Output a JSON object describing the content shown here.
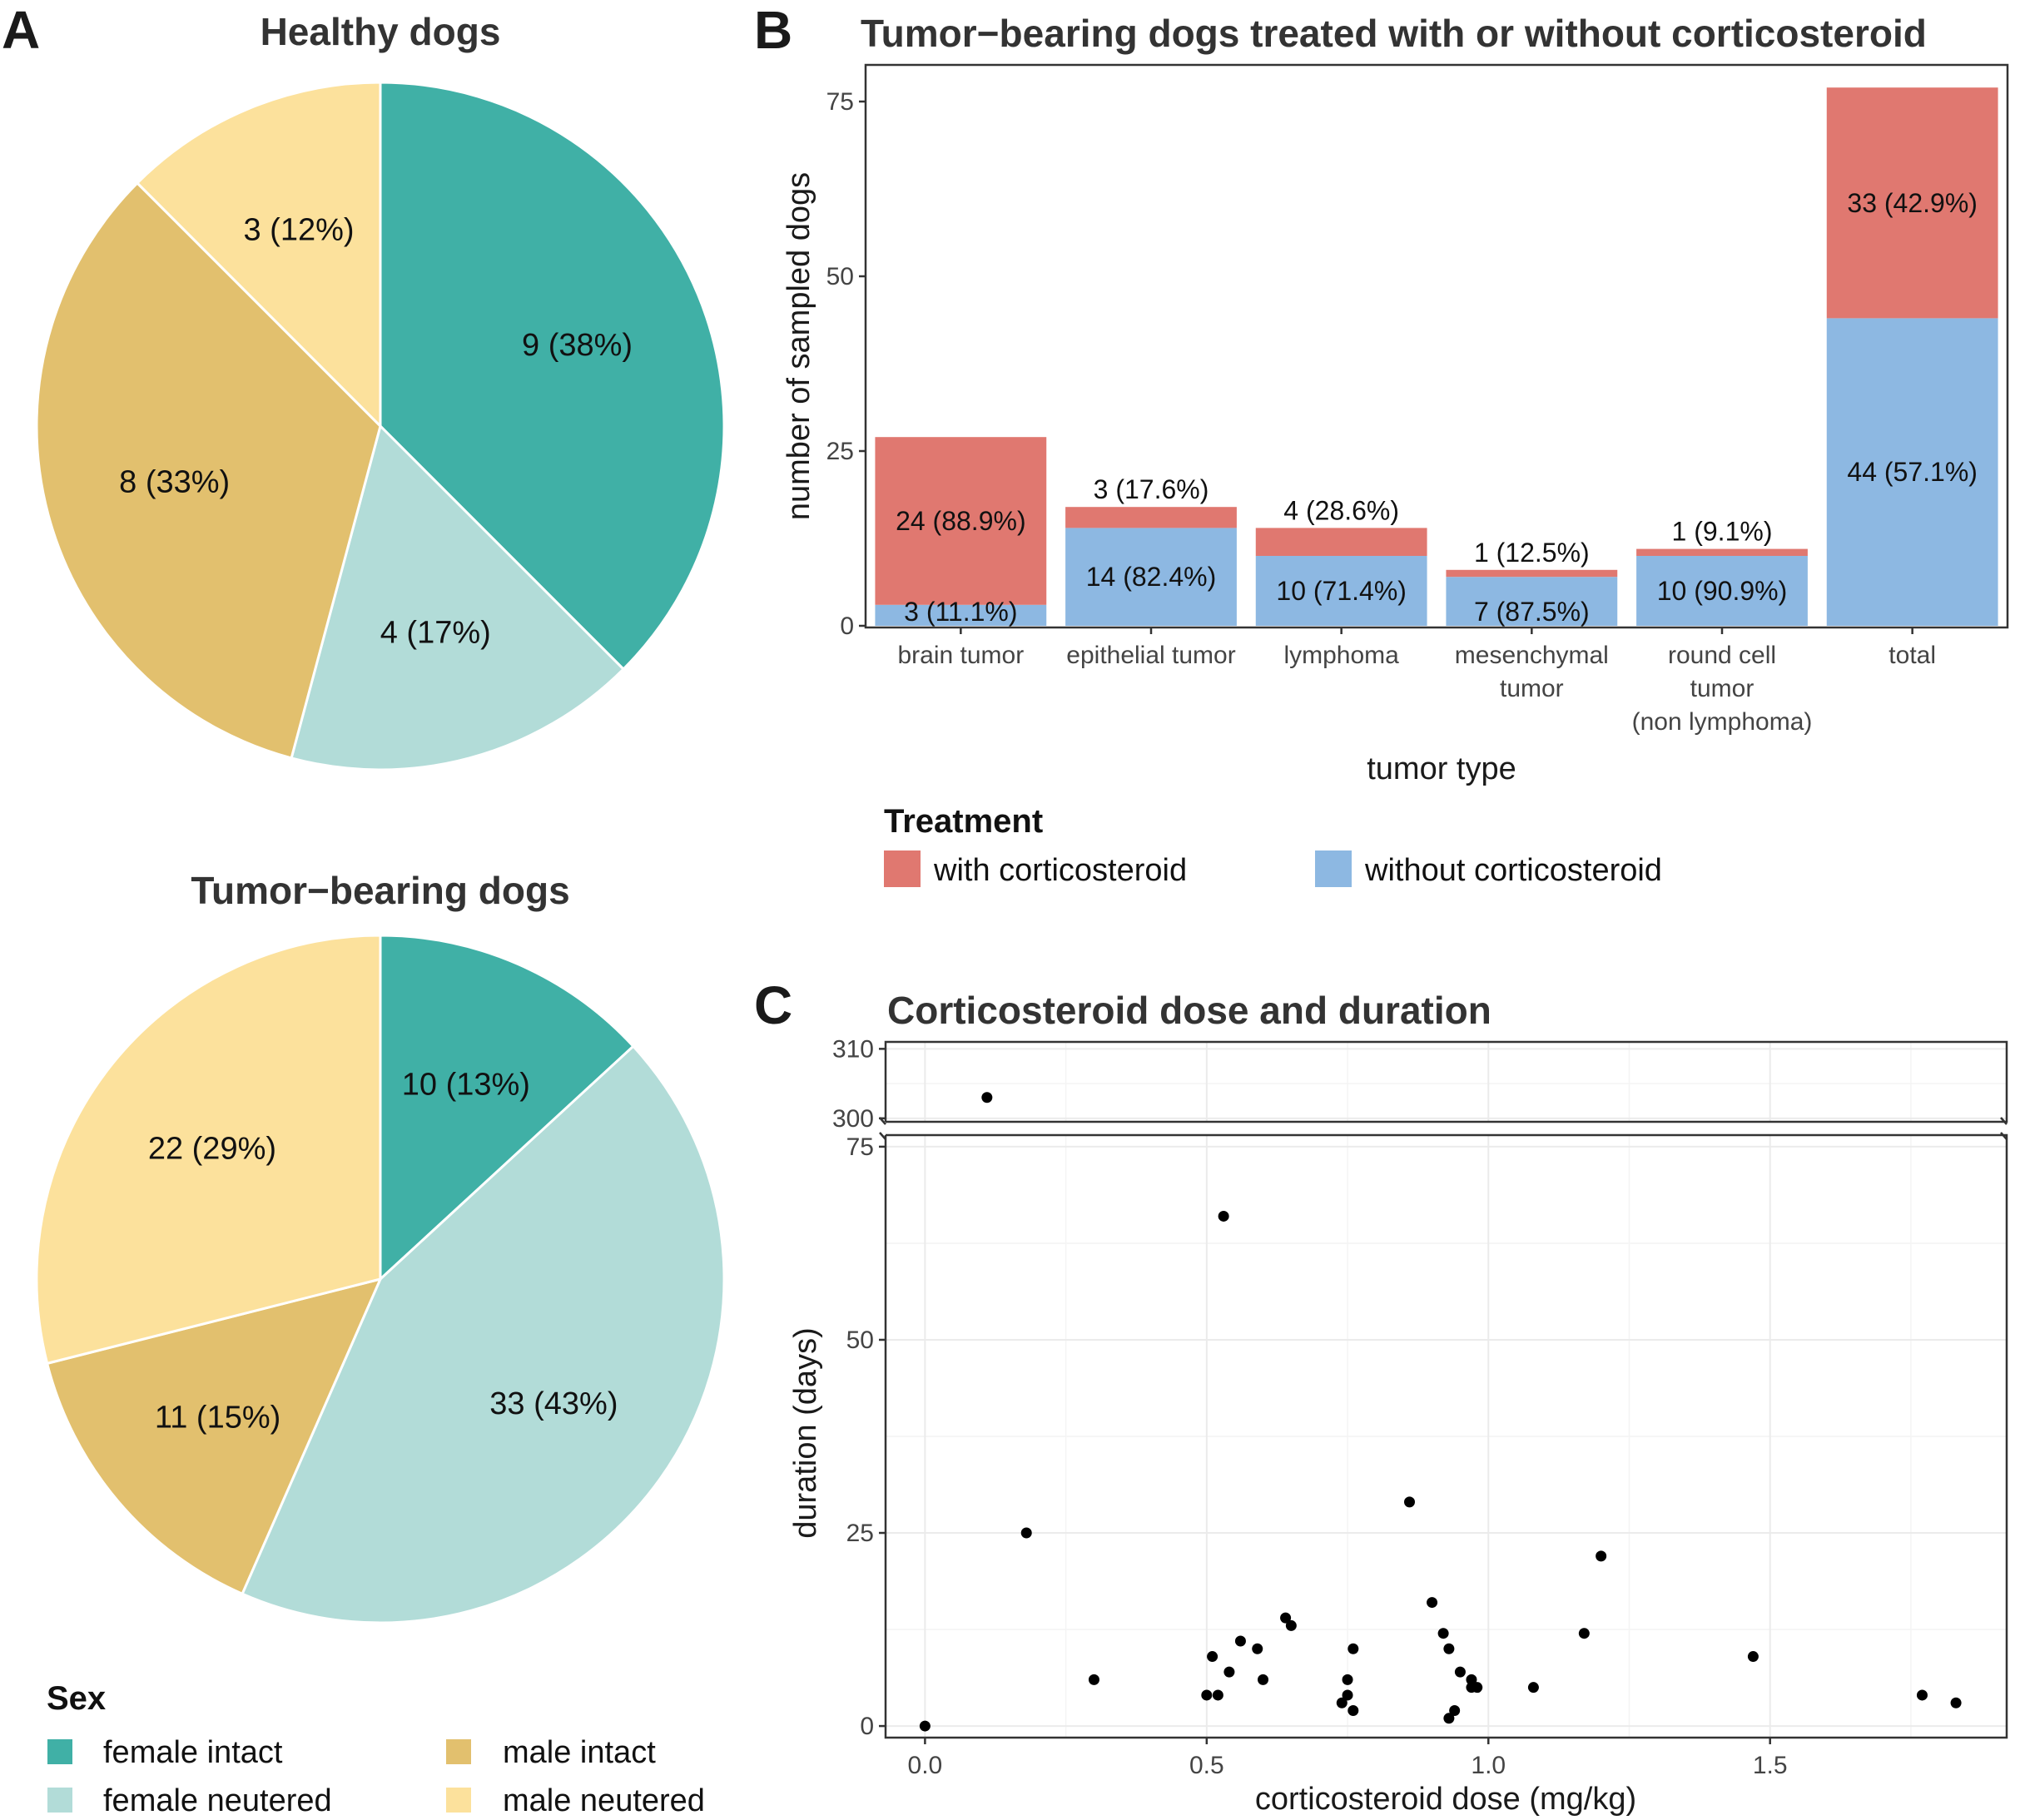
{
  "panel_labels": {
    "a": "A",
    "b": "B",
    "c": "C"
  },
  "colors": {
    "female_intact": "#40b0a6",
    "female_neutered": "#b2dcd8",
    "male_intact": "#e2c06e",
    "male_neutered": "#fce19c",
    "with_corticosteroid": "#e07870",
    "without_corticosteroid": "#8db8e2"
  },
  "chart_data": [
    {
      "id": "pie_healthy",
      "type": "pie",
      "title": "Healthy dogs",
      "start": "12 o'clock",
      "direction": "clockwise",
      "slices": [
        {
          "key": "female_intact",
          "category": "female intact",
          "value": 9,
          "label": "9 (38%)"
        },
        {
          "key": "female_neutered",
          "category": "female neutered",
          "value": 4,
          "label": "4 (17%)"
        },
        {
          "key": "male_intact",
          "category": "male intact",
          "value": 8,
          "label": "8 (33%)"
        },
        {
          "key": "male_neutered",
          "category": "male neutered",
          "value": 3,
          "label": "3 (12%)"
        }
      ]
    },
    {
      "id": "pie_tumor",
      "type": "pie",
      "title": "Tumor−bearing dogs",
      "start": "12 o'clock",
      "direction": "clockwise",
      "slices": [
        {
          "key": "female_intact",
          "category": "female intact",
          "value": 10,
          "label": "10 (13%)"
        },
        {
          "key": "female_neutered",
          "category": "female neutered",
          "value": 33,
          "label": "33 (43%)"
        },
        {
          "key": "male_intact",
          "category": "male intact",
          "value": 11,
          "label": "11 (15%)"
        },
        {
          "key": "male_neutered",
          "category": "male neutered",
          "value": 22,
          "label": "22 (29%)"
        }
      ]
    },
    {
      "id": "bar_treatment",
      "type": "bar",
      "stacked": true,
      "title": "Tumor−bearing dogs treated with or without corticosteroid",
      "xlabel": "tumor type",
      "ylabel": "number of sampled dogs",
      "ylim": [
        0,
        80
      ],
      "yticks": [
        0,
        25,
        50,
        75
      ],
      "grid": false,
      "categories": [
        [
          "brain tumor"
        ],
        [
          "epithelial tumor"
        ],
        [
          "lymphoma"
        ],
        [
          "mesenchymal",
          "tumor"
        ],
        [
          "round cell",
          "tumor",
          "(non lymphoma)"
        ],
        [
          "total"
        ]
      ],
      "series": [
        {
          "key": "without_corticosteroid",
          "name": "without corticosteroid",
          "values": [
            3,
            14,
            10,
            7,
            10,
            44
          ],
          "labels": [
            "3 (11.1%)",
            "14 (82.4%)",
            "10 (71.4%)",
            "7 (87.5%)",
            "10 (90.9%)",
            "44 (57.1%)"
          ]
        },
        {
          "key": "with_corticosteroid",
          "name": "with corticosteroid",
          "values": [
            24,
            3,
            4,
            1,
            1,
            33
          ],
          "labels": [
            "24 (88.9%)",
            "3 (17.6%)",
            "4 (28.6%)",
            "1 (12.5%)",
            "1 (9.1%)",
            "33 (42.9%)"
          ]
        }
      ],
      "legend": {
        "title": "Treatment",
        "placement": "bottom",
        "order": [
          "with_corticosteroid",
          "without_corticosteroid"
        ]
      }
    },
    {
      "id": "scatter_dose",
      "type": "scatter",
      "title": "Corticosteroid dose and duration",
      "xlabel": "corticosteroid dose (mg/kg)",
      "ylabel": "duration (days)",
      "xlim": [
        -0.07,
        1.92
      ],
      "xticks": [
        0.0,
        0.5,
        1.0,
        1.5
      ],
      "xticklabels": [
        "0.0",
        "0.5",
        "1.0",
        "1.5"
      ],
      "y_break": true,
      "ylim_lower": [
        -1.5,
        76.5
      ],
      "yticks_lower": [
        0,
        25,
        50,
        75
      ],
      "ylim_upper": [
        299.5,
        311
      ],
      "yticks_upper": [
        300,
        310
      ],
      "grid": true,
      "points": [
        [
          0.0,
          0
        ],
        [
          0.11,
          303
        ],
        [
          0.18,
          25
        ],
        [
          0.3,
          6
        ],
        [
          0.5,
          4
        ],
        [
          0.51,
          9
        ],
        [
          0.52,
          4
        ],
        [
          0.53,
          66
        ],
        [
          0.54,
          7
        ],
        [
          0.56,
          11
        ],
        [
          0.59,
          10
        ],
        [
          0.6,
          6
        ],
        [
          0.64,
          14
        ],
        [
          0.65,
          13
        ],
        [
          0.74,
          3
        ],
        [
          0.75,
          4
        ],
        [
          0.75,
          6
        ],
        [
          0.76,
          2
        ],
        [
          0.76,
          10
        ],
        [
          0.86,
          29
        ],
        [
          0.9,
          16
        ],
        [
          0.92,
          12
        ],
        [
          0.93,
          10
        ],
        [
          0.93,
          1
        ],
        [
          0.94,
          2
        ],
        [
          0.95,
          7
        ],
        [
          0.97,
          5
        ],
        [
          0.97,
          6
        ],
        [
          0.98,
          5
        ],
        [
          1.08,
          5
        ],
        [
          1.17,
          12
        ],
        [
          1.2,
          22
        ],
        [
          1.47,
          9
        ],
        [
          1.77,
          4
        ],
        [
          1.83,
          3
        ]
      ]
    }
  ],
  "sex_legend": {
    "title": "Sex",
    "items": [
      {
        "key": "female_intact",
        "label": "female intact"
      },
      {
        "key": "female_neutered",
        "label": "female neutered"
      },
      {
        "key": "male_intact",
        "label": "male intact"
      },
      {
        "key": "male_neutered",
        "label": "male neutered"
      }
    ]
  }
}
